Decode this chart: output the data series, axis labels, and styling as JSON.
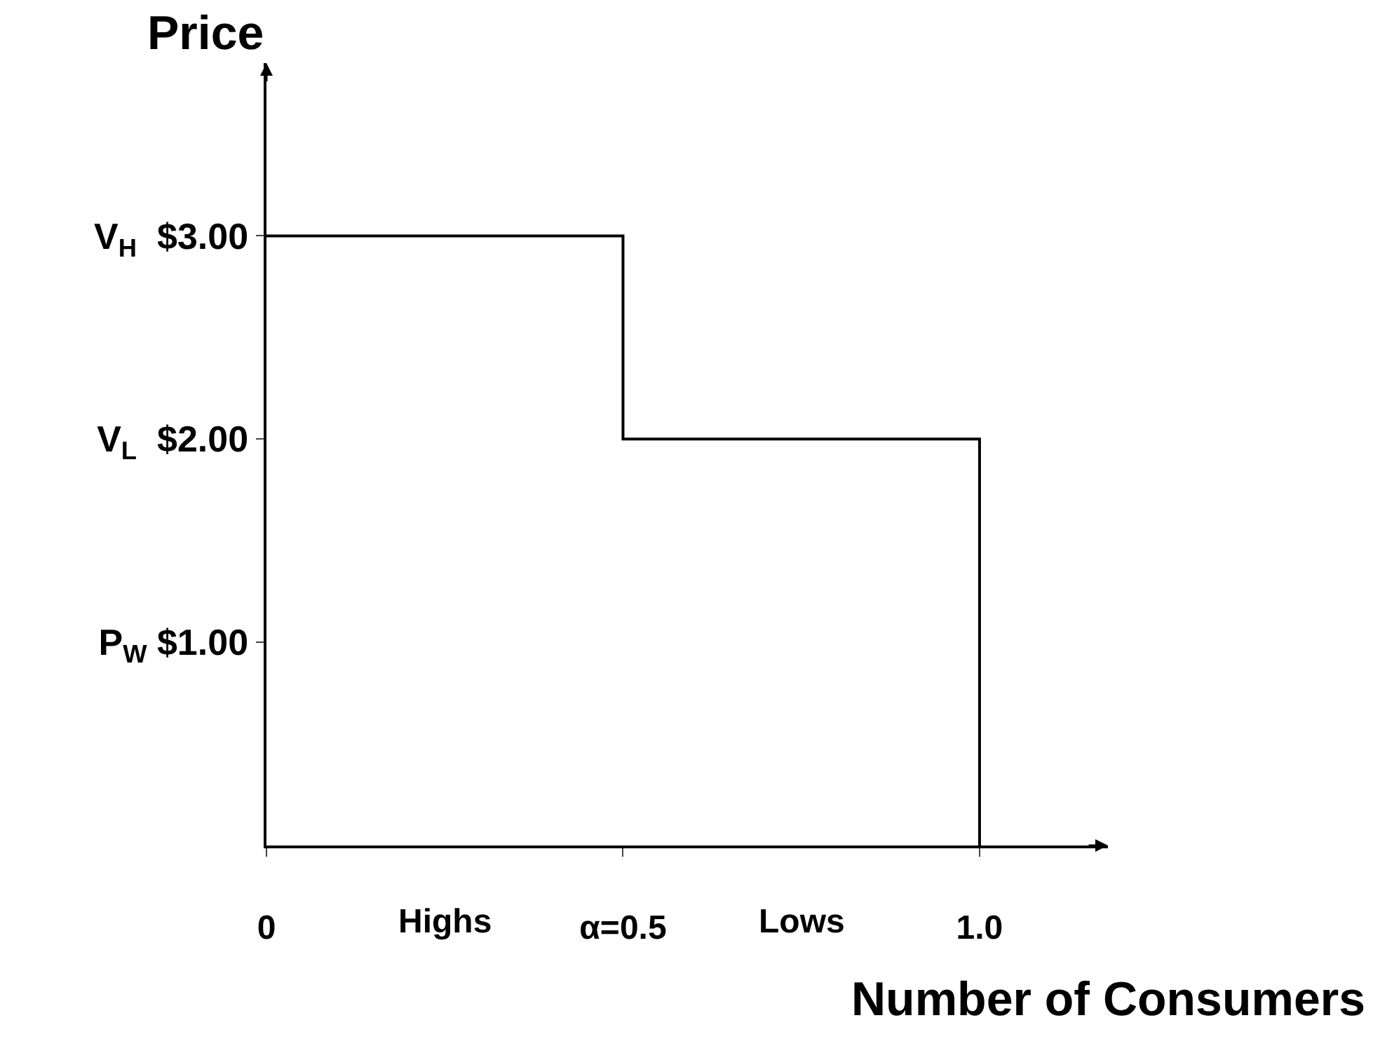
{
  "chart_data": {
    "type": "line",
    "xlabel": "Number of Consumers",
    "ylabel": "Price",
    "x": [
      0,
      0.5,
      0.5,
      1.0,
      1.0
    ],
    "series": [
      {
        "color": "#000000",
        "values": [
          3,
          3,
          2,
          2,
          0
        ]
      }
    ],
    "xlim": [
      0,
      1.18
    ],
    "ylim": [
      0,
      3.85
    ],
    "xticks": [
      {
        "value": 0,
        "label": "0"
      },
      {
        "value": 0.5,
        "label": "α=0.5"
      },
      {
        "value": 1.0,
        "label": "1.0"
      }
    ],
    "yticks": [
      {
        "value": 1,
        "label": "P$_{W}$ $1.00"
      },
      {
        "value": 2,
        "label": "V$_{L}$  $2.00"
      },
      {
        "value": 3,
        "label": "V$_{H}$  $3.00"
      }
    ],
    "annotations": [
      "Highs",
      "Lows"
    ],
    "marker": "none",
    "line_style": "solid"
  }
}
